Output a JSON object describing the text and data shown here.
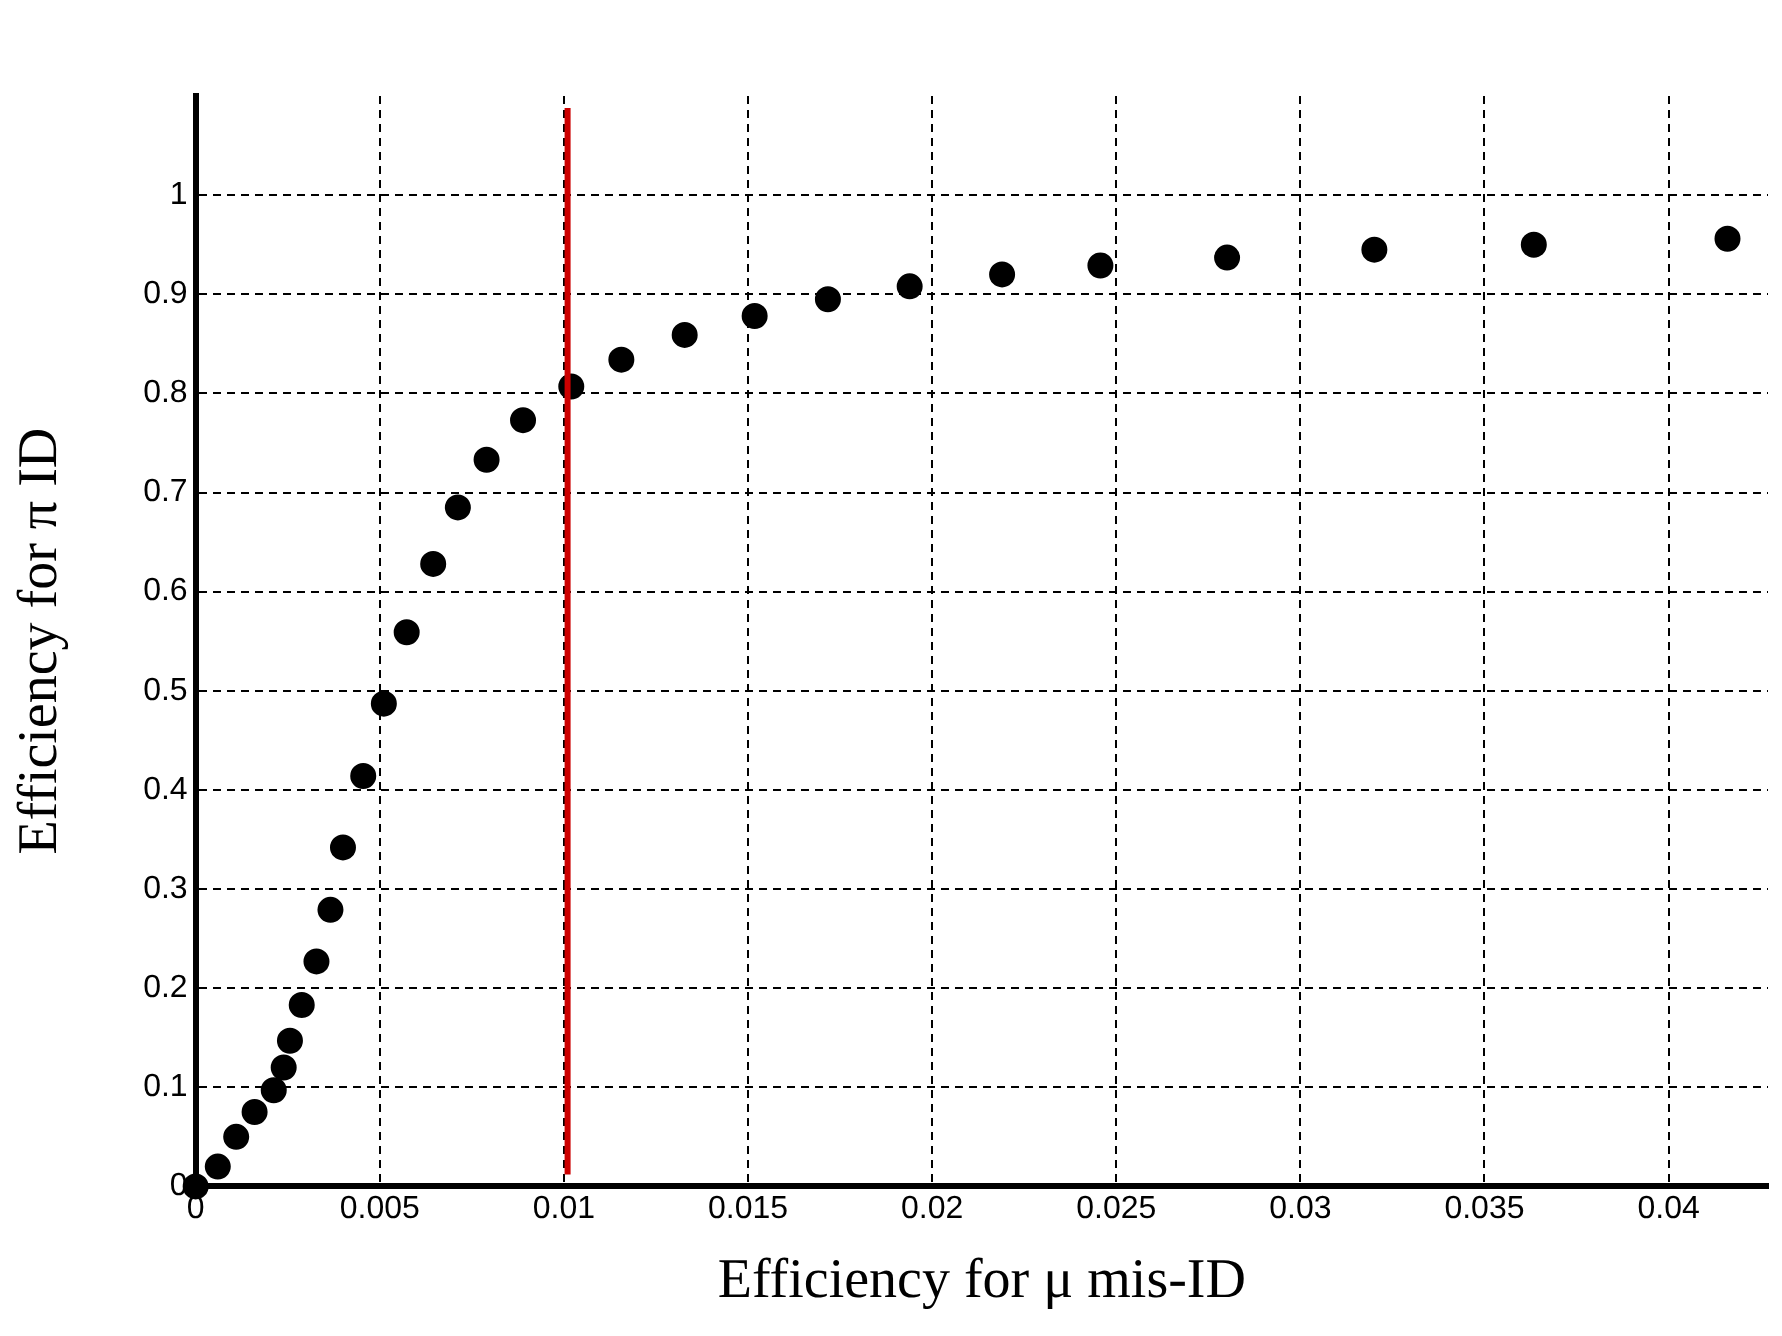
{
  "chart_data": {
    "type": "scatter",
    "xlabel": "Efficiency for μ mis-ID",
    "ylabel": "Efficiency for π ID",
    "x": [
      0,
      0.0006,
      0.0011,
      0.0016,
      0.00212,
      0.00239,
      0.00256,
      0.00288,
      0.00328,
      0.00366,
      0.004,
      0.00455,
      0.00511,
      0.00573,
      0.00645,
      0.00712,
      0.0079,
      0.00889,
      0.0102,
      0.01156,
      0.01328,
      0.01518,
      0.01717,
      0.01939,
      0.0219,
      0.02457,
      0.02801,
      0.03201,
      0.03634,
      0.0416
    ],
    "series": [
      {
        "color": "#000000",
        "values": [
          0,
          0.02,
          0.05,
          0.075,
          0.097,
          0.12,
          0.147,
          0.183,
          0.227,
          0.279,
          0.342,
          0.414,
          0.487,
          0.559,
          0.628,
          0.685,
          0.733,
          0.773,
          0.807,
          0.834,
          0.859,
          0.878,
          0.895,
          0.908,
          0.92,
          0.929,
          0.937,
          0.945,
          0.95,
          0.956
        ]
      }
    ],
    "xlim": [
      0,
      0.0427
    ],
    "ylim": [
      0,
      1.1
    ],
    "xticks": [
      0,
      0.005,
      0.01,
      0.015,
      0.02,
      0.025,
      0.03,
      0.035,
      0.04
    ],
    "yticks": [
      0,
      0.1,
      0.2,
      0.3,
      0.4,
      0.5,
      0.6,
      0.7,
      0.8,
      0.9,
      1
    ],
    "ref_lines": [
      {
        "axis": "x",
        "value": 0.0101,
        "color": "#cc0000"
      }
    ],
    "grid": true,
    "marker": "circle",
    "legend": false
  }
}
